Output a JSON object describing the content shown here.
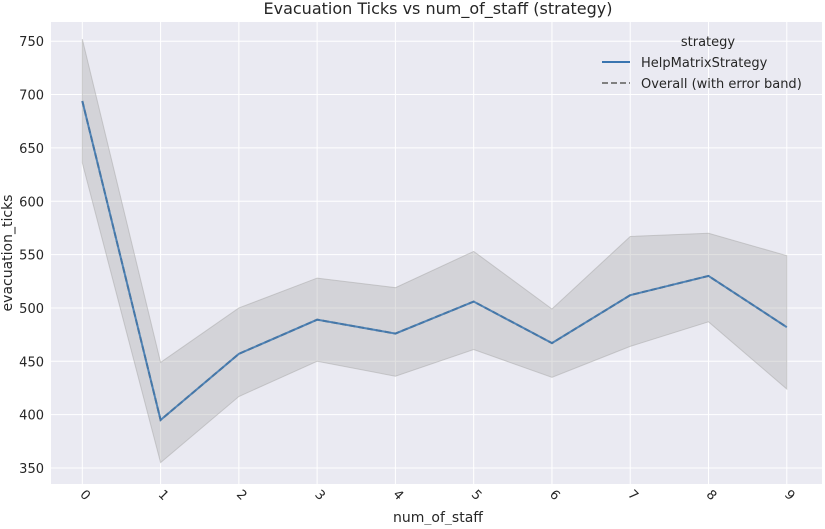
{
  "chart_data": {
    "type": "line",
    "title": "Evacuation Ticks vs num_of_staff (strategy)",
    "xlabel": "num_of_staff",
    "ylabel": "evacuation_ticks",
    "x": [
      0,
      1,
      2,
      3,
      4,
      5,
      6,
      7,
      8,
      9
    ],
    "xlim": [
      -0.4,
      9.45
    ],
    "ylim": [
      335,
      768
    ],
    "yticks": [
      350,
      400,
      450,
      500,
      550,
      600,
      650,
      700,
      750
    ],
    "grid": true,
    "legend": {
      "title": "strategy",
      "placement": "top-right"
    },
    "series": [
      {
        "name": "HelpMatrixStrategy",
        "style": "solid",
        "color": "#3a75b0",
        "values": [
          694,
          395,
          457,
          489,
          476,
          506,
          467,
          512,
          530,
          482
        ]
      },
      {
        "name": "Overall (with error band)",
        "style": "dashed",
        "color": "#808080",
        "values": [
          694,
          395,
          457,
          489,
          476,
          506,
          467,
          512,
          530,
          482
        ],
        "band_lower": [
          636,
          355,
          417,
          450,
          436,
          461,
          435,
          464,
          487,
          424
        ],
        "band_upper": [
          752,
          449,
          500,
          528,
          519,
          553,
          499,
          567,
          570,
          549
        ]
      }
    ],
    "colors": {
      "background": "#eaeaf2",
      "grid": "#ffffff",
      "band": "#a8a8a8"
    }
  }
}
